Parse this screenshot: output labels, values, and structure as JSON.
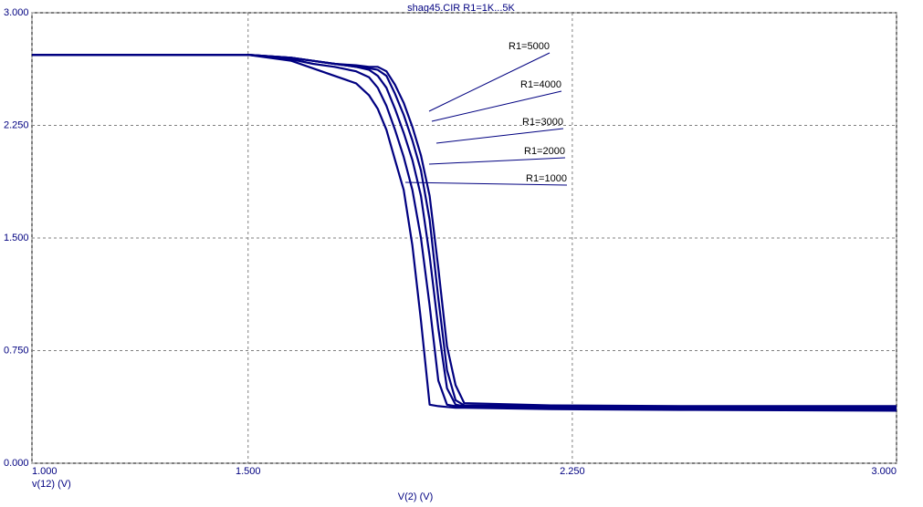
{
  "chart_data": {
    "type": "line",
    "title": "shag45.CIR R1=1K...5K",
    "x_label": "V(2) (V)",
    "y_label": "v(12) (V)",
    "xlim": [
      1.0,
      3.0
    ],
    "ylim": [
      0.0,
      3.0
    ],
    "xticks": [
      {
        "value": 1.0,
        "label": "1.000"
      },
      {
        "value": 1.5,
        "label": "1.500"
      },
      {
        "value": 2.25,
        "label": "2.250"
      },
      {
        "value": 3.0,
        "label": "3.000"
      }
    ],
    "yticks": [
      {
        "value": 0.0,
        "label": "0.000"
      },
      {
        "value": 0.75,
        "label": "0.750"
      },
      {
        "value": 1.5,
        "label": "1.500"
      },
      {
        "value": 2.25,
        "label": "2.250"
      },
      {
        "value": 3.0,
        "label": "3.000"
      }
    ],
    "grid": true,
    "x": [
      1.0,
      1.5,
      1.6,
      1.65,
      1.7,
      1.75,
      1.78,
      1.8,
      1.82,
      1.84,
      1.86,
      1.88,
      1.9,
      1.92,
      1.94,
      1.96,
      1.98,
      2.0,
      2.2,
      2.5,
      3.0
    ],
    "series": [
      {
        "name": "R1=1000",
        "color": "#000080",
        "values": [
          2.72,
          2.72,
          2.68,
          2.63,
          2.58,
          2.53,
          2.45,
          2.36,
          2.22,
          2.02,
          1.82,
          1.45,
          0.95,
          0.39,
          0.38,
          0.375,
          0.37,
          0.37,
          0.36,
          0.355,
          0.35
        ]
      },
      {
        "name": "R1=2000",
        "color": "#000080",
        "values": [
          2.72,
          2.72,
          2.69,
          2.66,
          2.64,
          2.61,
          2.57,
          2.5,
          2.38,
          2.22,
          2.04,
          1.82,
          1.5,
          1.05,
          0.55,
          0.39,
          0.38,
          0.375,
          0.37,
          0.365,
          0.36
        ]
      },
      {
        "name": "R1=3000",
        "color": "#000080",
        "values": [
          2.72,
          2.72,
          2.7,
          2.68,
          2.66,
          2.64,
          2.62,
          2.58,
          2.5,
          2.36,
          2.2,
          2.02,
          1.78,
          1.38,
          0.9,
          0.5,
          0.39,
          0.38,
          0.375,
          0.37,
          0.37
        ]
      },
      {
        "name": "R1=4000",
        "color": "#000080",
        "values": [
          2.72,
          2.72,
          2.7,
          2.68,
          2.66,
          2.64,
          2.63,
          2.62,
          2.58,
          2.46,
          2.32,
          2.15,
          1.95,
          1.62,
          1.1,
          0.62,
          0.42,
          0.385,
          0.38,
          0.375,
          0.375
        ]
      },
      {
        "name": "R1=5000",
        "color": "#000080",
        "values": [
          2.72,
          2.72,
          2.7,
          2.68,
          2.66,
          2.65,
          2.64,
          2.64,
          2.61,
          2.52,
          2.4,
          2.24,
          2.05,
          1.78,
          1.3,
          0.78,
          0.52,
          0.4,
          0.385,
          0.38,
          0.38
        ]
      }
    ]
  }
}
